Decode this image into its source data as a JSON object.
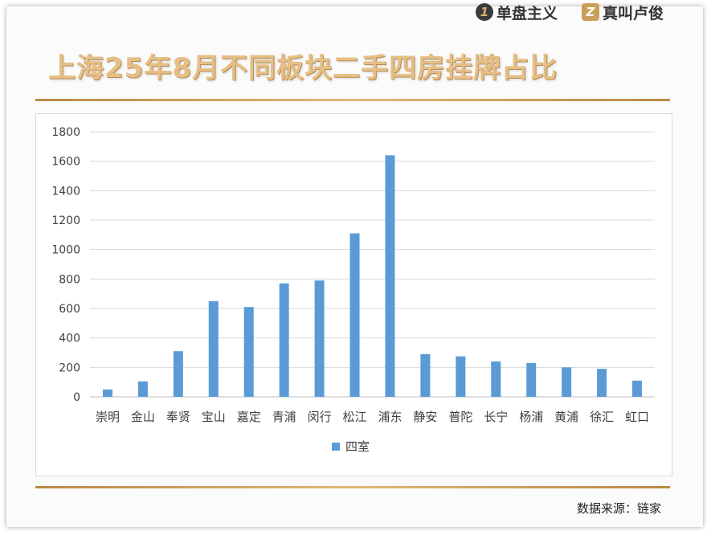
{
  "brands": [
    {
      "badge": "1",
      "label": "单盘主义"
    },
    {
      "badge": "Z",
      "label": "真叫卢俊"
    }
  ],
  "title": "上海25年8月不同板块二手四房挂牌占比",
  "source": "数据来源：链家",
  "colors": {
    "bar": "#5b9bd5",
    "title": "#e6bf86",
    "rule": "#c9a05a"
  },
  "chart_data": {
    "type": "bar",
    "title": "上海25年8月不同板块二手四房挂牌占比",
    "categories": [
      "崇明",
      "金山",
      "奉贤",
      "宝山",
      "嘉定",
      "青浦",
      "闵行",
      "松江",
      "浦东",
      "静安",
      "普陀",
      "长宁",
      "杨浦",
      "黄浦",
      "徐汇",
      "虹口"
    ],
    "series": [
      {
        "name": "四室",
        "values": [
          50,
          105,
          310,
          650,
          610,
          770,
          790,
          1110,
          1640,
          290,
          275,
          240,
          230,
          200,
          190,
          110
        ]
      }
    ],
    "ylim": [
      0,
      1800
    ],
    "yticks": [
      0,
      200,
      400,
      600,
      800,
      1000,
      1200,
      1400,
      1600,
      1800
    ],
    "grid": true,
    "legend": "bottom"
  }
}
